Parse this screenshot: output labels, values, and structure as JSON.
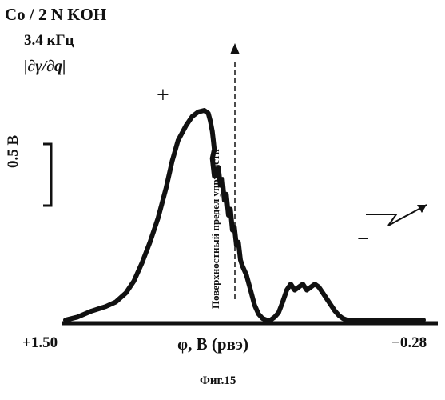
{
  "chart_data": {
    "type": "line",
    "title_lines": [
      "Co / 2 N KOH",
      "3.4 кГц",
      "|∂γ/∂q|"
    ],
    "xlabel": "φ, В (рвэ)",
    "x_tick_labels": [
      "+1.50",
      "−0.28"
    ],
    "xlim": [
      1.5,
      -0.28
    ],
    "scale_bar_label": "0.5 В",
    "annotations": {
      "plus": "+",
      "minus": "−",
      "vertical_note": "Поверхностный предел упругости"
    },
    "caption": "Фиг.15",
    "series": [
      {
        "x": [
          1.5,
          1.44,
          1.37,
          1.3,
          1.25,
          1.2,
          1.16,
          1.12,
          1.08,
          1.04,
          1.0,
          0.97,
          0.94,
          0.9,
          0.87,
          0.84,
          0.81,
          0.79,
          0.78,
          0.77,
          0.765,
          0.76,
          0.77,
          0.76,
          0.74,
          0.73,
          0.72,
          0.71,
          0.7,
          0.69,
          0.68,
          0.67,
          0.66,
          0.65,
          0.64,
          0.63,
          0.62,
          0.6,
          0.58,
          0.56,
          0.54,
          0.52,
          0.5,
          0.48,
          0.46,
          0.44,
          0.42,
          0.4,
          0.38,
          0.36,
          0.34,
          0.32,
          0.3,
          0.28,
          0.26,
          0.24,
          0.22,
          0.2,
          0.18,
          0.16,
          0.14,
          0.12,
          0.1,
          0.08,
          0.06,
          0.04,
          0.02,
          0.0,
          -0.02,
          -0.04,
          -0.06,
          -0.08,
          -0.1,
          -0.12,
          -0.14,
          -0.16,
          -0.18,
          -0.2,
          -0.22,
          -0.24,
          -0.26,
          -0.28
        ],
        "y": [
          0.0,
          0.02,
          0.06,
          0.09,
          0.12,
          0.18,
          0.26,
          0.38,
          0.52,
          0.68,
          0.88,
          1.06,
          1.2,
          1.3,
          1.36,
          1.39,
          1.4,
          1.38,
          1.33,
          1.26,
          1.2,
          1.14,
          1.08,
          0.96,
          1.02,
          0.9,
          0.94,
          0.8,
          0.84,
          0.7,
          0.74,
          0.6,
          0.62,
          0.5,
          0.52,
          0.4,
          0.36,
          0.3,
          0.2,
          0.1,
          0.04,
          0.01,
          0.0,
          0.0,
          0.02,
          0.05,
          0.12,
          0.2,
          0.24,
          0.2,
          0.22,
          0.24,
          0.2,
          0.22,
          0.24,
          0.22,
          0.18,
          0.14,
          0.1,
          0.06,
          0.03,
          0.01,
          0.0,
          0.0,
          0.0,
          0.0,
          0.0,
          0.0,
          0.0,
          0.0,
          0.0,
          0.0,
          0.0,
          0.0,
          0.0,
          0.0,
          0.0,
          0.0,
          0.0,
          0.0,
          0.0,
          0.0
        ]
      }
    ]
  }
}
